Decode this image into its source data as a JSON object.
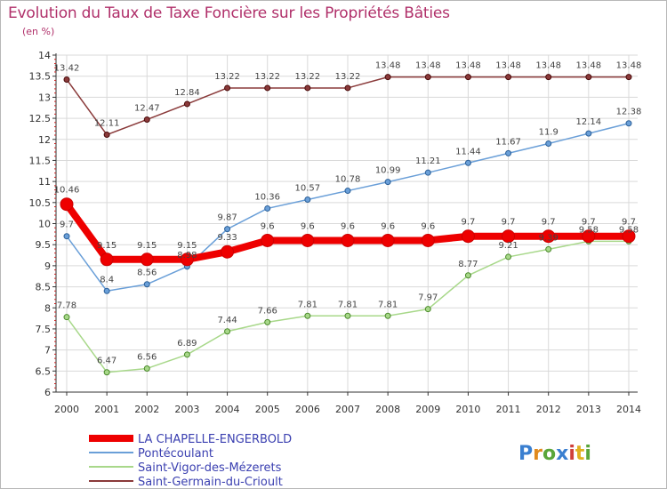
{
  "title": "Evolution du Taux de Taxe Foncière sur les Propriétés Bâties",
  "unit_label": "(en %)",
  "brand": {
    "letters": [
      "P",
      "r",
      "o",
      "x",
      "i",
      "t",
      "i"
    ],
    "colors": [
      "#3a7fd0",
      "#e08a1e",
      "#5aa63a",
      "#3a7fd0",
      "#d0403a",
      "#e0b020",
      "#5aa63a"
    ]
  },
  "chart_data": {
    "type": "line",
    "x": [
      "2000",
      "2001",
      "2002",
      "2003",
      "2004",
      "2005",
      "2006",
      "2007",
      "2008",
      "2009",
      "2010",
      "2011",
      "2012",
      "2013",
      "2014"
    ],
    "ylim": [
      6,
      14
    ],
    "yticks": [
      "6",
      "6.5",
      "7",
      "7.5",
      "8",
      "8.5",
      "9",
      "9.5",
      "10",
      "10.5",
      "11",
      "11.5",
      "12",
      "12.5",
      "13",
      "13.5",
      "14"
    ],
    "grid": true,
    "legend_position": "bottom-left",
    "series": [
      {
        "name": "LA CHAPELLE-ENGERBOLD",
        "color": "#ee0000",
        "width": 8,
        "marker": 7,
        "markerStroke": "#cc0000",
        "values": [
          10.46,
          9.15,
          9.15,
          9.15,
          9.33,
          9.6,
          9.6,
          9.6,
          9.6,
          9.6,
          9.7,
          9.7,
          9.7,
          9.7,
          9.7
        ],
        "labels": [
          "10.46",
          "9.15",
          "9.15",
          "9.15",
          "9.33",
          "9.6",
          "9.6",
          "9.6",
          "9.6",
          "9.6",
          "9.7",
          "9.7",
          "9.7",
          "9.7",
          "9.7"
        ]
      },
      {
        "name": "Pontécoulant",
        "color": "#6a9fd8",
        "width": 1.5,
        "marker": 3,
        "markerStroke": "#2a5f98",
        "values": [
          9.7,
          8.4,
          8.56,
          8.98,
          9.87,
          10.36,
          10.57,
          10.78,
          10.99,
          11.21,
          11.44,
          11.67,
          11.9,
          12.14,
          12.38
        ],
        "labels": [
          "9.7",
          "8.4",
          "8.56",
          "8.98",
          "9.87",
          "10.36",
          "10.57",
          "10.78",
          "10.99",
          "11.21",
          "11.44",
          "11.67",
          "11.9",
          "12.14",
          "12.38"
        ]
      },
      {
        "name": "Saint-Vigor-des-Mézerets",
        "color": "#a8d88a",
        "width": 1.5,
        "marker": 3,
        "markerStroke": "#4a8a2a",
        "values": [
          7.78,
          6.47,
          6.56,
          6.89,
          7.44,
          7.66,
          7.81,
          7.81,
          7.81,
          7.97,
          8.77,
          9.21,
          9.39,
          9.58,
          9.58
        ],
        "labels": [
          "7.78",
          "6.47",
          "6.56",
          "6.89",
          "7.44",
          "7.66",
          "7.81",
          "7.81",
          "7.81",
          "7.97",
          "8.77",
          "9.21",
          "9.39",
          "9.58",
          "9.58"
        ]
      },
      {
        "name": "Saint-Germain-du-Crioult",
        "color": "#8a3a3a",
        "width": 1.5,
        "marker": 3,
        "markerStroke": "#4a0a0a",
        "values": [
          13.42,
          12.11,
          12.47,
          12.84,
          13.22,
          13.22,
          13.22,
          13.22,
          13.48,
          13.48,
          13.48,
          13.48,
          13.48,
          13.48,
          13.48
        ],
        "labels": [
          "13.42",
          "12.11",
          "12.47",
          "12.84",
          "13.22",
          "13.22",
          "13.22",
          "13.22",
          "13.48",
          "13.48",
          "13.48",
          "13.48",
          "13.48",
          "13.48",
          "13.48"
        ]
      }
    ]
  }
}
